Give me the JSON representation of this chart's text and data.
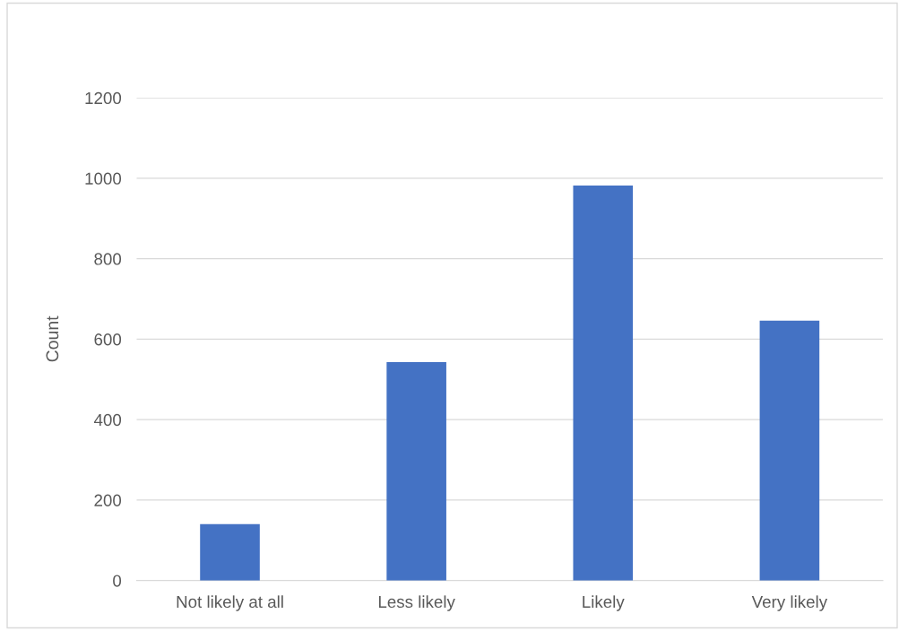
{
  "chart_data": {
    "type": "bar",
    "ylabel": "Count",
    "categories": [
      "Not likely at all",
      "Less likely",
      "Likely",
      "Very likely"
    ],
    "values": [
      140,
      543,
      982,
      646
    ],
    "color": "#4472c4",
    "ylim": [
      0,
      1200
    ],
    "yticks": [
      0,
      200,
      400,
      600,
      800,
      1000,
      1200
    ],
    "grid": "y"
  }
}
